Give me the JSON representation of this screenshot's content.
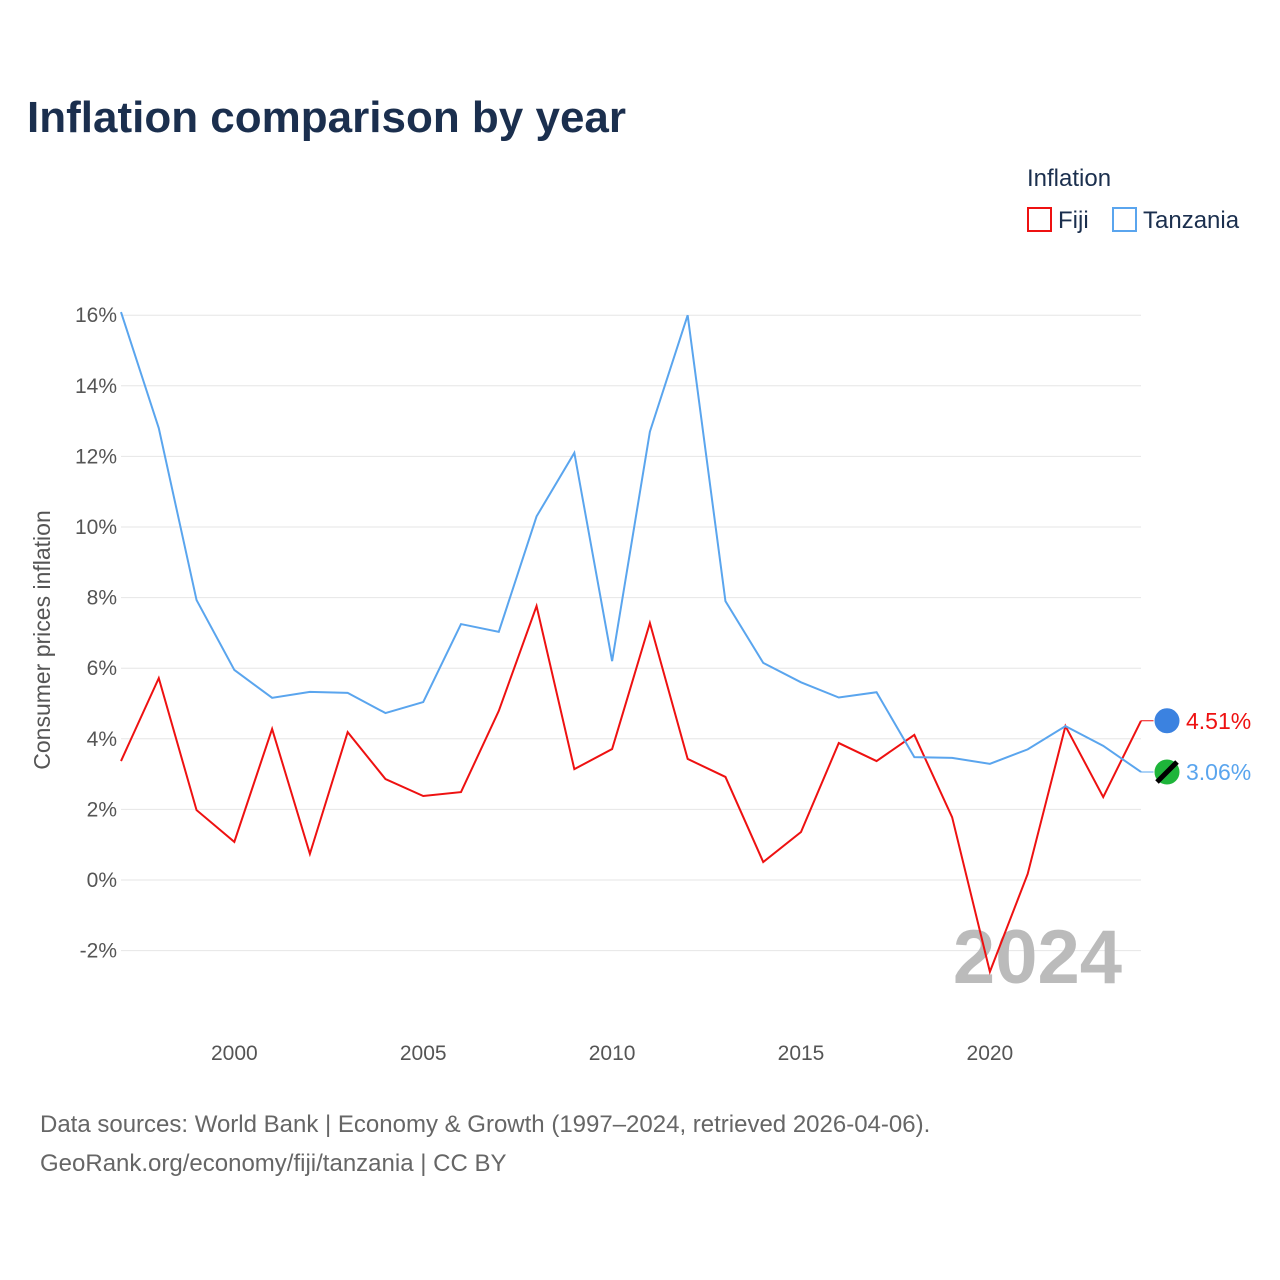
{
  "chart_data": {
    "type": "line",
    "title": "Inflation comparison by year",
    "xlabel": "",
    "ylabel": "Consumer prices inflation",
    "legend_title": "Inflation",
    "legend_position": "top-right",
    "watermark_year": "2024",
    "ylim": [
      -3.5,
      16.5
    ],
    "yticks": [
      -2,
      0,
      2,
      4,
      6,
      8,
      10,
      12,
      14,
      16
    ],
    "ytick_labels": [
      "-2%",
      "0%",
      "2%",
      "4%",
      "6%",
      "8%",
      "10%",
      "12%",
      "14%",
      "16%"
    ],
    "xticks": [
      2000,
      2005,
      2010,
      2015,
      2020
    ],
    "xtick_labels": [
      "2000",
      "2005",
      "2010",
      "2015",
      "2020"
    ],
    "x": [
      1997,
      1998,
      1999,
      2000,
      2001,
      2002,
      2003,
      2004,
      2005,
      2006,
      2007,
      2008,
      2009,
      2010,
      2011,
      2012,
      2013,
      2014,
      2015,
      2016,
      2017,
      2018,
      2019,
      2020,
      2021,
      2022,
      2023,
      2024
    ],
    "series": [
      {
        "name": "Fiji",
        "color": "#ee1111",
        "end_label": "4.51%",
        "values": [
          3.37,
          5.72,
          1.98,
          1.08,
          4.28,
          0.74,
          4.19,
          2.86,
          2.38,
          2.49,
          4.79,
          7.76,
          3.14,
          3.71,
          7.28,
          3.43,
          2.92,
          0.51,
          1.36,
          3.88,
          3.37,
          4.11,
          1.78,
          -2.6,
          0.17,
          4.36,
          2.35,
          4.51
        ]
      },
      {
        "name": "Tanzania",
        "color": "#5aa5ee",
        "end_label": "3.06%",
        "values": [
          16.09,
          12.8,
          7.93,
          5.95,
          5.16,
          5.33,
          5.3,
          4.73,
          5.04,
          7.25,
          7.03,
          10.3,
          12.1,
          6.2,
          12.7,
          16.0,
          7.9,
          6.15,
          5.6,
          5.17,
          5.32,
          3.48,
          3.46,
          3.29,
          3.7,
          4.36,
          3.8,
          3.06
        ]
      }
    ]
  },
  "footer": {
    "line1": "Data sources: World Bank | Economy & Growth (1997–2024, retrieved 2026-04-06).",
    "line2": "GeoRank.org/economy/fiji/tanzania | CC BY"
  }
}
